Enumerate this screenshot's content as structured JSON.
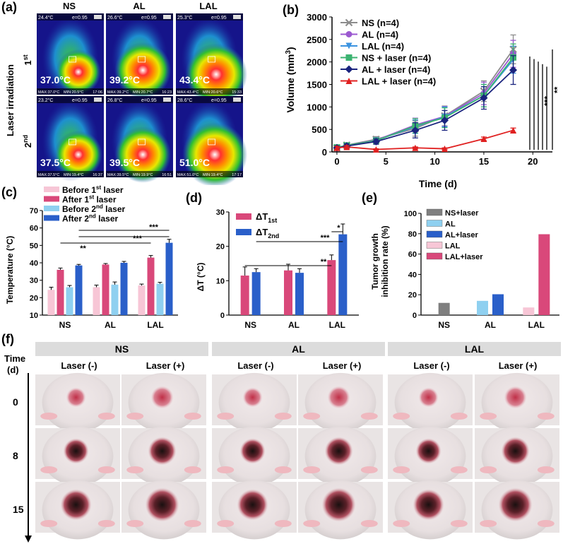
{
  "panel_letters": {
    "a": "(a)",
    "b": "(b)",
    "c": "(c)",
    "d": "(d)",
    "e": "(e)",
    "f": "(f)"
  },
  "panel_a": {
    "columns": [
      "NS",
      "AL",
      "LAL"
    ],
    "row_axis_label": "Laser irradiation",
    "row_labels": [
      {
        "main": "1",
        "sup": "st"
      },
      {
        "main": "2",
        "sup": "nd"
      }
    ],
    "images": [
      {
        "row": 0,
        "col": 0,
        "top_temp": "24.4°C",
        "emissivity": "e=0.95",
        "main_temp": "37.0°C",
        "footer_max": "MAX:37.0°C",
        "footer_min": "MIN:20.5°C",
        "time": "17:06"
      },
      {
        "row": 0,
        "col": 1,
        "top_temp": "26.6°C",
        "emissivity": "e=0.95",
        "main_temp": "39.2°C",
        "footer_max": "MAX:39.2°C",
        "footer_min": "MIN:20.7°C",
        "time": "16:23"
      },
      {
        "row": 0,
        "col": 2,
        "top_temp": "25.3°C",
        "emissivity": "e=0.95",
        "main_temp": "43.4°C",
        "footer_max": "MAX:43.4°C",
        "footer_min": "MIN:20.6°C",
        "time": "15:33"
      },
      {
        "row": 1,
        "col": 0,
        "top_temp": "23.2°C",
        "emissivity": "e=0.95",
        "main_temp": "37.5°C",
        "footer_max": "MAX:37.5°C",
        "footer_min": "MIN:19.4°C",
        "time": "16:37"
      },
      {
        "row": 1,
        "col": 1,
        "top_temp": "26.8°C",
        "emissivity": "e=0.95",
        "main_temp": "39.5°C",
        "footer_max": "MAX:39.5°C",
        "footer_min": "MIN:19.9°C",
        "time": "16:51"
      },
      {
        "row": 1,
        "col": 2,
        "top_temp": "28.6°C",
        "emissivity": "e=0.95",
        "main_temp": "51.0°C",
        "footer_max": "MAX:51.0°C",
        "footer_min": "MIN:19.4°C",
        "time": "17:17"
      }
    ]
  },
  "chart_data": [
    {
      "id": "b",
      "type": "line",
      "xlabel": "Time (d)",
      "ylabel": "Volume (mm",
      "ylabel_sup": "3",
      "ylabel_end": ")",
      "xlim": [
        -0.5,
        22
      ],
      "ylim": [
        0,
        3000
      ],
      "xticks": [
        0,
        5,
        10,
        15,
        20
      ],
      "yticks": [
        0,
        500,
        1000,
        1500,
        2000,
        2500,
        3000
      ],
      "x": [
        0,
        1,
        4,
        8,
        11,
        15,
        18
      ],
      "series": [
        {
          "name": "NS (n=4)",
          "color": "#8c8c8c",
          "marker": "x",
          "values": [
            90,
            150,
            280,
            520,
            800,
            1350,
            2280
          ],
          "errors": [
            40,
            50,
            60,
            170,
            220,
            230,
            320
          ]
        },
        {
          "name": "AL (n=4)",
          "color": "#9b59d0",
          "marker": "circle",
          "values": [
            95,
            145,
            260,
            600,
            790,
            1300,
            2180
          ],
          "errors": [
            40,
            50,
            60,
            150,
            220,
            250,
            300
          ]
        },
        {
          "name": "LAL (n=4)",
          "color": "#3b93e0",
          "marker": "triangle-down",
          "values": [
            95,
            140,
            255,
            560,
            780,
            1250,
            2050
          ],
          "errors": [
            40,
            50,
            60,
            150,
            220,
            250,
            300
          ]
        },
        {
          "name": "NS + laser (n=4)",
          "color": "#3cb371",
          "marker": "square",
          "values": [
            100,
            145,
            250,
            580,
            760,
            1250,
            2100
          ],
          "errors": [
            40,
            50,
            60,
            160,
            220,
            250,
            300
          ]
        },
        {
          "name": "AL + laser (n=4)",
          "color": "#1a237e",
          "marker": "diamond",
          "values": [
            90,
            130,
            230,
            480,
            700,
            1200,
            1820
          ],
          "errors": [
            40,
            50,
            60,
            170,
            220,
            250,
            320
          ]
        },
        {
          "name": "LAL + laser (n=4)",
          "color": "#e02020",
          "marker": "triangle-up",
          "values": [
            90,
            110,
            55,
            90,
            70,
            290,
            480
          ],
          "errors": [
            30,
            30,
            15,
            20,
            20,
            40,
            50
          ]
        }
      ],
      "significance": [
        "***",
        "**"
      ]
    },
    {
      "id": "c",
      "type": "bar",
      "ylabel": "Temperature (°C)",
      "ylim": [
        10,
        70
      ],
      "yticks": [
        10,
        20,
        30,
        40,
        50,
        60,
        70
      ],
      "categories": [
        "NS",
        "AL",
        "LAL"
      ],
      "series": [
        {
          "name": "Before 1",
          "name_sup": "st",
          "name_end": " laser",
          "color": "#f7c6d6",
          "values": [
            24.5,
            26.0,
            27.0
          ],
          "errors": [
            1.5,
            1.2,
            0.8
          ]
        },
        {
          "name": "After 1",
          "name_sup": "st",
          "name_end": " laser",
          "color": "#d9487a",
          "values": [
            36.0,
            39.0,
            43.0
          ],
          "errors": [
            1.0,
            0.6,
            1.2
          ]
        },
        {
          "name": "Before 2",
          "name_sup": "nd",
          "name_end": " laser",
          "color": "#8fd0f0",
          "values": [
            26.0,
            27.5,
            28.0
          ],
          "errors": [
            1.0,
            1.5,
            0.8
          ]
        },
        {
          "name": "After 2",
          "name_sup": "nd",
          "name_end": " laser",
          "color": "#2a5fc9",
          "values": [
            38.5,
            40.0,
            51.5
          ],
          "errors": [
            0.6,
            0.8,
            2.0
          ]
        }
      ],
      "significance": [
        "**",
        "***",
        "***"
      ]
    },
    {
      "id": "d",
      "type": "bar",
      "ylabel": "ΔT (°C)",
      "ylim": [
        0,
        30
      ],
      "yticks": [
        0,
        10,
        20,
        30
      ],
      "categories": [
        "NS",
        "AL",
        "LAL"
      ],
      "series": [
        {
          "name": "ΔT",
          "name_sub": "1st",
          "color": "#d9487a",
          "values": [
            11.5,
            13.0,
            16.0
          ],
          "errors": [
            2.5,
            1.8,
            1.5
          ]
        },
        {
          "name": "ΔT",
          "name_sub": "2nd",
          "color": "#2a5fc9",
          "values": [
            12.5,
            12.3,
            23.5
          ],
          "errors": [
            1.0,
            1.2,
            3.0
          ]
        }
      ],
      "significance": [
        "**",
        "***",
        "*"
      ]
    },
    {
      "id": "e",
      "type": "bar",
      "ylabel_lines": [
        "Tumor growth",
        "inhibition rate (%)"
      ],
      "ylim": [
        0,
        100
      ],
      "yticks": [
        0,
        20,
        40,
        60,
        80,
        100
      ],
      "categories": [
        "NS",
        "AL",
        "LAL"
      ],
      "series": [
        {
          "name": "NS+laser",
          "color": "#7f7f7f",
          "values": [
            12,
            null,
            null
          ]
        },
        {
          "name": "AL",
          "color": "#8fd0f0",
          "values": [
            null,
            14,
            null
          ]
        },
        {
          "name": "AL+laser",
          "color": "#2a5fc9",
          "values": [
            null,
            20.5,
            null
          ]
        },
        {
          "name": "LAL",
          "color": "#f7c6d6",
          "values": [
            null,
            null,
            7.5
          ]
        },
        {
          "name": "LAL+laser",
          "color": "#d9487a",
          "values": [
            null,
            null,
            79.5
          ]
        }
      ]
    }
  ],
  "panel_f": {
    "time_label": "Time",
    "time_unit": "(d)",
    "groups": [
      "NS",
      "AL",
      "LAL"
    ],
    "laser_labels": [
      "Laser (-)",
      "Laser (+)"
    ],
    "rows": [
      "0",
      "8",
      "15"
    ]
  }
}
